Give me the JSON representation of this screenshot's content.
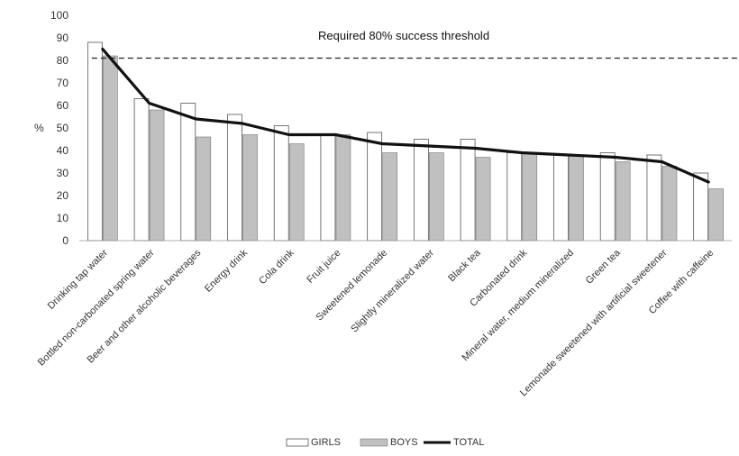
{
  "chart_data": {
    "type": "bar",
    "ylabel": "%",
    "ylim": [
      0,
      100
    ],
    "yticks": [
      0,
      10,
      20,
      30,
      40,
      50,
      60,
      70,
      80,
      90,
      100
    ],
    "categories": [
      "Drinking tap water",
      "Bottled non-carbonated spring water",
      "Beer and other alcoholic beverages",
      "Energy drink",
      "Cola drink",
      "Fruit juice",
      "Sweetened lemonade",
      "Slightly mineralized water",
      "Black tea",
      "Carbonated drink",
      "Mineral water, medium mineralized",
      "Green tea",
      "Lemonade sweetened with artificial sweetener",
      "Coffee with caffeine"
    ],
    "series": [
      {
        "name": "GIRLS",
        "kind": "bar",
        "color": "#ffffff",
        "values": [
          88,
          63,
          61,
          56,
          51,
          47,
          48,
          45,
          45,
          39,
          38,
          39,
          38,
          30
        ]
      },
      {
        "name": "BOYS",
        "kind": "bar",
        "color": "#c0c0c0",
        "values": [
          82,
          58,
          46,
          47,
          43,
          47,
          39,
          39,
          37,
          39,
          38,
          35,
          33,
          23
        ]
      },
      {
        "name": "TOTAL",
        "kind": "line",
        "color": "#111111",
        "values": [
          85,
          61,
          54,
          52,
          47,
          47,
          43,
          42,
          41,
          39,
          38,
          37,
          35,
          26
        ]
      }
    ],
    "threshold": {
      "value": 81,
      "label": "Required 80% success threshold"
    },
    "grid": false,
    "legend": "bottom"
  }
}
